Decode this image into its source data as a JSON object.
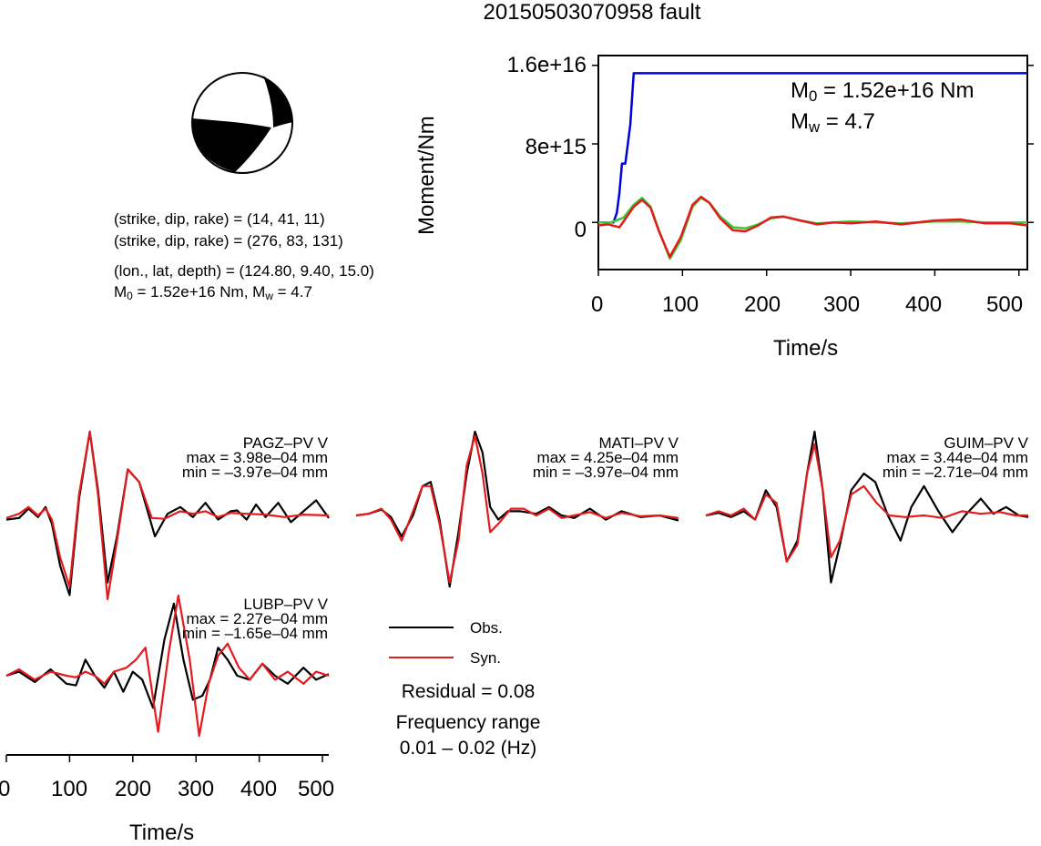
{
  "title": "20150503070958 fault",
  "focal": {
    "np1": "(strike, dip, rake) = (14, 41, 11)",
    "np2": "(strike, dip, rake) = (276, 83, 131)",
    "location": "(lon., lat, depth) = (124.80, 9.40, 15.0)",
    "m0_prefix": "M",
    "m0_sub": "0",
    "m0_rest": " = 1.52e+16 Nm, M",
    "mw_sub": "w",
    "mw_rest": " = 4.7"
  },
  "moment_panel": {
    "ylabel": "Moment/Nm",
    "xlabel": "Time/s",
    "m0_label_prefix": "M",
    "m0_label_sub": "0",
    "m0_label_rest": " = 1.52e+16 Nm",
    "mw_label_prefix": "M",
    "mw_label_sub": "w",
    "mw_label_rest": " = 4.7"
  },
  "waveforms": {
    "xlabel": "Time/s",
    "legend": {
      "obs": "Obs.",
      "syn": "Syn."
    },
    "residual": "Residual = 0.08",
    "freq_title": "Frequency range",
    "freq_value": "0.01 – 0.02 (Hz)",
    "stations": [
      {
        "name": "PAGZ–PV V",
        "max": "max = 3.98e–04 mm",
        "min": "min = –3.97e–04 mm"
      },
      {
        "name": "MATI–PV V",
        "max": "max = 4.25e–04 mm",
        "min": "min = –3.97e–04 mm"
      },
      {
        "name": "GUIM–PV V",
        "max": "max = 3.44e–04 mm",
        "min": "min = –2.71e–04 mm"
      },
      {
        "name": "LUBP–PV V",
        "max": "max = 2.27e–04 mm",
        "min": "min = –1.65e–04 mm"
      }
    ]
  },
  "colors": {
    "obs": "#000000",
    "syn": "#e41a1c",
    "moment_rate_green": "#33cc33",
    "cumulative_blue": "#0000dd"
  },
  "chart_data": [
    {
      "type": "line",
      "title": "",
      "xlabel": "Time/s",
      "ylabel": "Moment/Nm",
      "xlim": [
        0,
        510
      ],
      "ylim": [
        -4800000000000000.0,
        1.7e+16
      ],
      "xticks": [
        0,
        100,
        200,
        300,
        400,
        500
      ],
      "xtick_labels": [
        "0",
        "100",
        "200",
        "300",
        "400",
        "500"
      ],
      "yticks": [
        0,
        8000000000000000.0,
        1.6e+16
      ],
      "ytick_labels": [
        "0",
        "8e+15",
        "1.6e+16"
      ],
      "series": [
        {
          "color": "#0000dd",
          "x": [
            0,
            18,
            22,
            25,
            28,
            32,
            38,
            42,
            510
          ],
          "y": [
            0,
            0,
            1000000000000000.0,
            3000000000000000.0,
            6000000000000000.0,
            6000000000000000.0,
            1e+16,
            1.52e+16,
            1.52e+16
          ]
        },
        {
          "color": "#33cc33",
          "x": [
            0,
            15,
            30,
            42,
            52,
            62,
            72,
            85,
            98,
            112,
            122,
            132,
            145,
            160,
            175,
            190,
            205,
            220,
            240,
            260,
            280,
            300,
            330,
            360,
            400,
            430,
            460,
            490,
            510
          ],
          "y": [
            0,
            0,
            500000000000000.0,
            1800000000000000.0,
            2500000000000000.0,
            1600000000000000.0,
            -800000000000000.0,
            -3700000000000000.0,
            -1800000000000000.0,
            1600000000000000.0,
            2500000000000000.0,
            2000000000000000.0,
            600000000000000.0,
            -500000000000000.0,
            -600000000000000.0,
            -200000000000000.0,
            400000000000000.0,
            600000000000000.0,
            200000000000000.0,
            -100000000000000.0,
            0,
            100000000000000.0,
            0,
            -100000000000000.0,
            100000000000000.0,
            100000000000000.0,
            0,
            0,
            0
          ]
        },
        {
          "color": "#e41a1c",
          "x": [
            0,
            12,
            25,
            30,
            42,
            52,
            62,
            72,
            85,
            98,
            112,
            122,
            132,
            145,
            160,
            175,
            190,
            205,
            220,
            240,
            260,
            280,
            300,
            330,
            360,
            400,
            430,
            460,
            490,
            510
          ],
          "y": [
            -300000000000000.0,
            -200000000000000.0,
            -500000000000000.0,
            100000000000000.0,
            1600000000000000.0,
            2300000000000000.0,
            1500000000000000.0,
            -900000000000000.0,
            -3500000000000000.0,
            -1500000000000000.0,
            1800000000000000.0,
            2600000000000000.0,
            2000000000000000.0,
            400000000000000.0,
            -800000000000000.0,
            -900000000000000.0,
            -300000000000000.0,
            500000000000000.0,
            600000000000000.0,
            200000000000000.0,
            -200000000000000.0,
            0,
            -100000000000000.0,
            100000000000000.0,
            -200000000000000.0,
            200000000000000.0,
            300000000000000.0,
            -100000000000000.0,
            -100000000000000.0,
            -300000000000000.0
          ]
        }
      ]
    },
    {
      "type": "line",
      "title": "PAGZ–PV V",
      "xlim": [
        0,
        510
      ],
      "ylim": [
        -1,
        1
      ],
      "series": [
        {
          "name": "Obs.",
          "color": "#000000",
          "x": [
            0,
            20,
            35,
            50,
            62,
            72,
            85,
            100,
            115,
            132,
            145,
            160,
            175,
            192,
            210,
            235,
            255,
            275,
            295,
            315,
            335,
            355,
            365,
            380,
            395,
            410,
            430,
            450,
            470,
            490,
            510
          ],
          "y": [
            -0.05,
            -0.03,
            0.08,
            -0.02,
            0.1,
            -0.1,
            -0.6,
            -0.95,
            0.2,
            1.0,
            0.3,
            -0.8,
            -0.25,
            0.55,
            0.4,
            -0.25,
            0.02,
            0.1,
            -0.02,
            0.15,
            -0.05,
            0.05,
            0.06,
            -0.05,
            0.13,
            -0.02,
            0.15,
            -0.08,
            0.05,
            0.18,
            -0.03
          ]
        },
        {
          "name": "Syn.",
          "color": "#e41a1c",
          "x": [
            0,
            20,
            35,
            50,
            62,
            72,
            85,
            100,
            115,
            132,
            145,
            160,
            175,
            192,
            210,
            230,
            250,
            275,
            295,
            315,
            335,
            355,
            380,
            410,
            440,
            470,
            510
          ],
          "y": [
            -0.03,
            0.02,
            0.1,
            0.0,
            0.08,
            -0.05,
            -0.5,
            -0.85,
            0.25,
            1.0,
            0.25,
            -1.0,
            -0.3,
            0.55,
            0.4,
            -0.03,
            -0.04,
            0.05,
            0.02,
            0.05,
            -0.02,
            0.03,
            0.02,
            0.01,
            -0.02,
            0.01,
            0
          ]
        }
      ]
    },
    {
      "type": "line",
      "title": "MATI–PV V",
      "xlim": [
        0,
        510
      ],
      "ylim": [
        -1,
        1
      ],
      "series": [
        {
          "name": "Obs.",
          "color": "#000000",
          "x": [
            0,
            20,
            40,
            55,
            72,
            90,
            105,
            118,
            132,
            148,
            162,
            175,
            188,
            200,
            212,
            225,
            240,
            260,
            285,
            305,
            325,
            345,
            370,
            395,
            420,
            450,
            480,
            510
          ],
          "y": [
            0,
            0.02,
            0.07,
            -0.02,
            -0.25,
            0.0,
            0.35,
            0.4,
            -0.05,
            -0.85,
            -0.2,
            0.5,
            1.0,
            0.75,
            0.1,
            -0.05,
            0.05,
            0.05,
            0.02,
            0.1,
            0.0,
            -0.03,
            0.08,
            -0.05,
            0.05,
            -0.02,
            0.0,
            -0.06
          ]
        },
        {
          "name": "Syn.",
          "color": "#e41a1c",
          "x": [
            0,
            20,
            40,
            55,
            72,
            90,
            105,
            118,
            132,
            148,
            162,
            175,
            188,
            200,
            212,
            225,
            245,
            265,
            285,
            305,
            325,
            345,
            370,
            395,
            420,
            450,
            480,
            510
          ],
          "y": [
            0,
            0.02,
            0.08,
            -0.05,
            -0.3,
            0.05,
            0.35,
            0.35,
            -0.1,
            -0.8,
            -0.3,
            0.6,
            0.95,
            0.5,
            -0.2,
            -0.1,
            0.08,
            0.08,
            0.0,
            0.08,
            -0.03,
            0.0,
            0.04,
            -0.03,
            0.03,
            -0.01,
            0.0,
            -0.03
          ]
        }
      ]
    },
    {
      "type": "line",
      "title": "GUIM–PV V",
      "xlim": [
        0,
        510
      ],
      "ylim": [
        -1,
        1
      ],
      "series": [
        {
          "name": "Obs.",
          "color": "#000000",
          "x": [
            0,
            20,
            40,
            60,
            78,
            95,
            112,
            128,
            145,
            160,
            172,
            185,
            198,
            212,
            230,
            250,
            268,
            288,
            308,
            325,
            345,
            368,
            390,
            410,
            435,
            455,
            475,
            495,
            510
          ],
          "y": [
            0.0,
            0.03,
            -0.02,
            0.05,
            -0.05,
            0.3,
            0.1,
            -0.55,
            -0.3,
            0.5,
            1.0,
            0.3,
            -0.8,
            -0.35,
            0.3,
            0.5,
            0.4,
            0.0,
            -0.3,
            0.1,
            0.35,
            0.05,
            -0.2,
            0.0,
            0.2,
            0.02,
            0.1,
            0.0,
            -0.02
          ]
        },
        {
          "name": "Syn.",
          "color": "#e41a1c",
          "x": [
            0,
            20,
            40,
            60,
            78,
            95,
            112,
            128,
            145,
            160,
            172,
            185,
            198,
            212,
            230,
            250,
            270,
            290,
            315,
            345,
            375,
            405,
            435,
            465,
            490,
            510
          ],
          "y": [
            0.0,
            0.05,
            0.0,
            0.08,
            -0.05,
            0.25,
            0.15,
            -0.55,
            -0.35,
            0.5,
            0.85,
            0.3,
            -0.5,
            -0.3,
            0.25,
            0.35,
            0.15,
            0.0,
            -0.02,
            0.0,
            -0.03,
            0.05,
            0.02,
            0.04,
            0.0,
            0.0
          ]
        }
      ]
    },
    {
      "type": "line",
      "title": "LUBP–PV V",
      "xlim": [
        0,
        510
      ],
      "ylim": [
        -1,
        1
      ],
      "series": [
        {
          "name": "Obs.",
          "color": "#000000",
          "x": [
            0,
            20,
            45,
            70,
            95,
            110,
            125,
            140,
            155,
            170,
            185,
            200,
            215,
            232,
            250,
            265,
            280,
            295,
            310,
            322,
            335,
            350,
            365,
            385,
            405,
            425,
            445,
            470,
            490,
            510
          ],
          "y": [
            0.0,
            0.05,
            -0.08,
            0.08,
            -0.1,
            -0.12,
            0.2,
            0.0,
            -0.15,
            0.05,
            -0.2,
            0.05,
            -0.05,
            -0.4,
            0.45,
            0.9,
            0.2,
            -0.3,
            -0.25,
            -0.05,
            0.35,
            0.2,
            0.0,
            -0.05,
            0.15,
            0.0,
            -0.1,
            0.1,
            -0.05,
            0.02
          ]
        },
        {
          "name": "Syn.",
          "color": "#e41a1c",
          "x": [
            0,
            20,
            45,
            70,
            95,
            110,
            125,
            140,
            155,
            170,
            190,
            205,
            220,
            240,
            257,
            272,
            290,
            305,
            320,
            335,
            350,
            368,
            385,
            405,
            425,
            445,
            470,
            490,
            510
          ],
          "y": [
            0.0,
            0.08,
            -0.05,
            0.05,
            0.0,
            -0.02,
            0.05,
            0.0,
            -0.1,
            0.05,
            0.1,
            0.2,
            0.35,
            -0.7,
            0.3,
            1.0,
            0.2,
            -0.75,
            -0.1,
            0.25,
            0.4,
            0.1,
            -0.05,
            0.15,
            -0.05,
            0.05,
            -0.1,
            0.05,
            0.0
          ]
        }
      ]
    }
  ]
}
